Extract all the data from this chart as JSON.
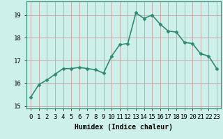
{
  "x": [
    0,
    1,
    2,
    3,
    4,
    5,
    6,
    7,
    8,
    9,
    10,
    11,
    12,
    13,
    14,
    15,
    16,
    17,
    18,
    19,
    20,
    21,
    22,
    23
  ],
  "y": [
    15.4,
    15.95,
    16.15,
    16.4,
    16.65,
    16.65,
    16.7,
    16.65,
    16.6,
    16.45,
    17.2,
    17.7,
    17.75,
    19.1,
    18.85,
    19.0,
    18.6,
    18.3,
    18.25,
    17.8,
    17.75,
    17.3,
    17.2,
    16.65
  ],
  "line_color": "#2e8b72",
  "marker": "D",
  "marker_size": 2.5,
  "bg_color": "#cef0ea",
  "grid_color": "#b8dbd6",
  "axis_spine_color": "#2e8b72",
  "xlabel": "Humidex (Indice chaleur)",
  "xlim": [
    -0.5,
    23.5
  ],
  "ylim": [
    14.9,
    19.6
  ],
  "yticks": [
    15,
    16,
    17,
    18,
    19
  ],
  "xtick_labels": [
    "0",
    "1",
    "2",
    "3",
    "4",
    "5",
    "6",
    "7",
    "8",
    "9",
    "10",
    "11",
    "12",
    "13",
    "14",
    "15",
    "16",
    "17",
    "18",
    "19",
    "20",
    "21",
    "22",
    "23"
  ],
  "xlabel_fontsize": 7,
  "tick_fontsize": 6.5,
  "linewidth": 1.2,
  "grid_major_color": "#c8a0a0",
  "grid_minor_color": "#cef0ea"
}
